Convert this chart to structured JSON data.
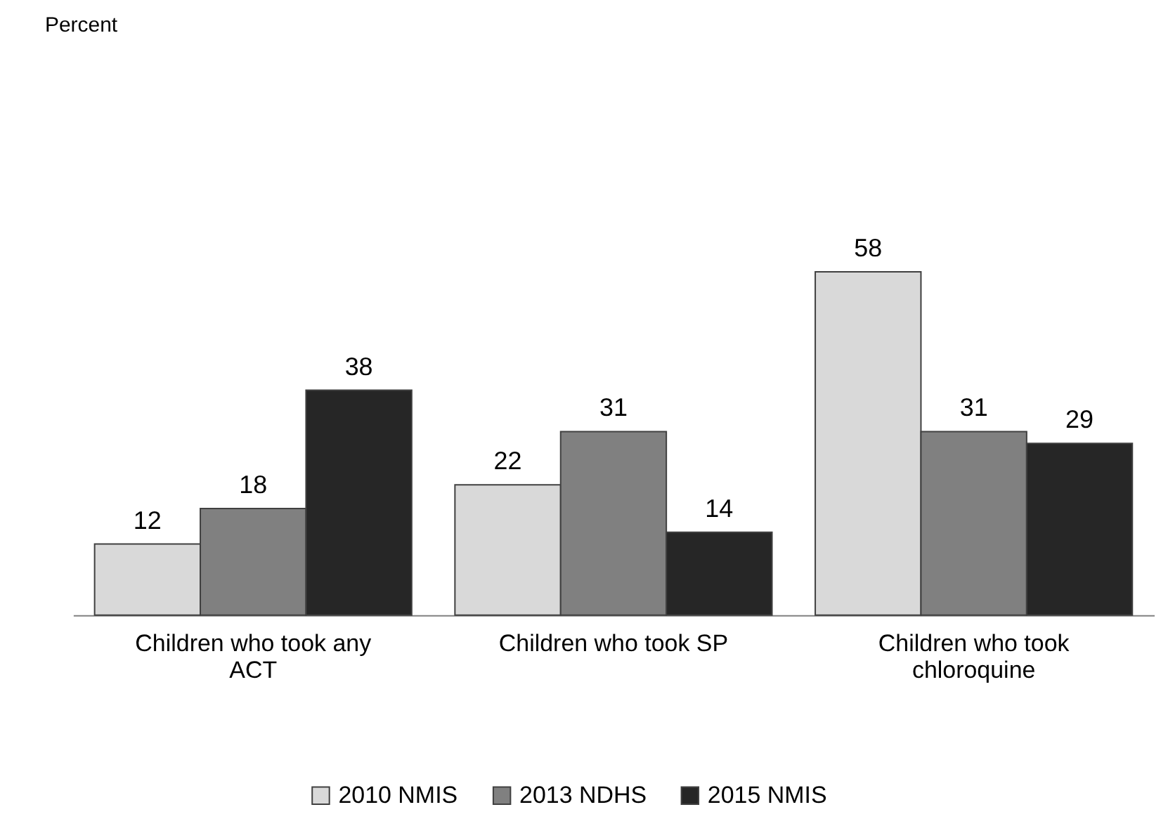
{
  "chart_data": {
    "type": "bar",
    "annotations": [
      "Percent"
    ],
    "categories": [
      "Children who took any ACT",
      "Children who took SP",
      "Children who took chloroquine"
    ],
    "series": [
      {
        "name": "2010 NMIS",
        "color": "#d9d9d9",
        "values": [
          12,
          22,
          58
        ]
      },
      {
        "name": "2013 NDHS",
        "color": "#808080",
        "values": [
          18,
          31,
          31
        ]
      },
      {
        "name": "2015 NMIS",
        "color": "#262626",
        "values": [
          38,
          14,
          29
        ]
      }
    ],
    "data_labels": true,
    "legend": "bottom",
    "grid": false,
    "tick_labels": "x"
  }
}
